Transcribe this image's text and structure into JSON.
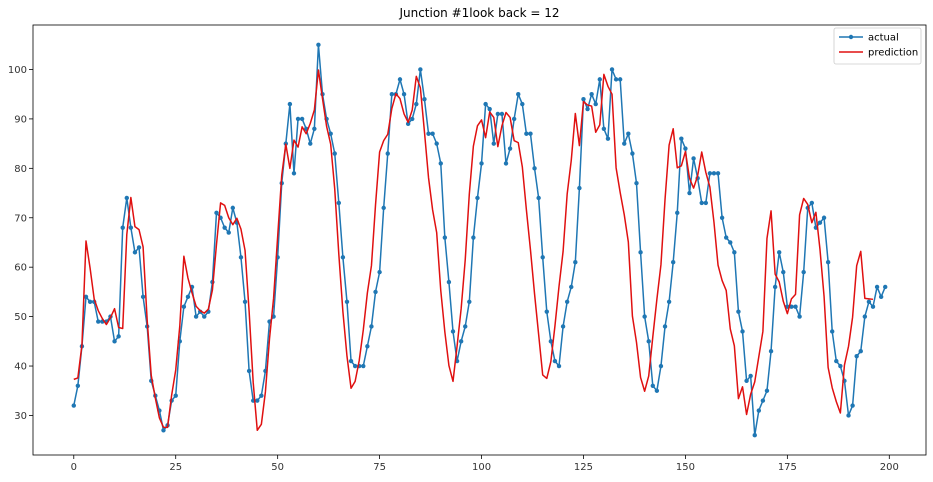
{
  "chart_data": {
    "type": "line",
    "title": "Junction #1look back = 12",
    "xlabel": "",
    "ylabel": "",
    "xlim": [
      -10,
      209
    ],
    "ylim": [
      22,
      109
    ],
    "x_ticks": [
      0,
      25,
      50,
      75,
      100,
      125,
      150,
      175,
      200
    ],
    "y_ticks": [
      30,
      40,
      50,
      60,
      70,
      80,
      90,
      100
    ],
    "grid": false,
    "legend_position": "top-right",
    "series": [
      {
        "name": "actual",
        "color": "#1f77b4",
        "marker": "dot",
        "values": [
          32,
          36,
          44,
          54,
          53,
          53,
          49,
          49,
          49,
          50,
          45,
          46,
          68,
          74,
          68,
          63,
          64,
          54,
          48,
          37,
          34,
          31,
          27,
          28,
          33,
          34,
          45,
          52,
          54,
          56,
          50,
          51,
          50,
          51,
          57,
          71,
          70,
          68,
          67,
          72,
          69,
          62,
          53,
          39,
          33,
          33,
          34,
          39,
          49,
          50,
          62,
          77,
          85,
          93,
          79,
          90,
          90,
          88,
          85,
          88,
          105,
          95,
          90,
          87,
          83,
          73,
          62,
          53,
          41,
          40,
          40,
          40,
          44,
          48,
          55,
          59,
          72,
          83,
          95,
          95,
          98,
          95,
          89,
          90,
          93,
          100,
          94,
          87,
          87,
          85,
          81,
          66,
          57,
          47,
          41,
          45,
          48,
          53,
          66,
          74,
          81,
          93,
          92,
          85,
          91,
          91,
          81,
          84,
          90,
          95,
          93,
          87,
          87,
          80,
          74,
          62,
          51,
          45,
          41,
          40,
          48,
          53,
          56,
          61,
          76,
          94,
          92,
          95,
          93,
          98,
          88,
          86,
          100,
          98,
          98,
          85,
          87,
          83,
          77,
          63,
          50,
          45,
          36,
          35,
          40,
          48,
          53,
          61,
          71,
          86,
          84,
          75,
          82,
          78,
          73,
          73,
          79,
          79,
          79,
          70,
          66,
          65,
          63,
          51,
          47,
          37,
          38,
          26,
          31,
          33,
          35,
          43,
          56,
          63,
          59,
          52,
          52,
          52,
          50,
          59,
          72,
          73,
          68,
          69,
          70,
          61,
          47,
          41,
          40,
          37,
          30,
          32,
          42,
          43,
          50,
          53,
          52,
          56,
          54,
          56
        ]
      },
      {
        "name": "prediction",
        "color": "#e01010",
        "marker": "none",
        "values": [
          37.3,
          37.6,
          44.2,
          65.3,
          59.8,
          53.6,
          51.2,
          49.6,
          48.4,
          49.8,
          51.6,
          47.8,
          47.6,
          66.6,
          74.1,
          68.2,
          67.6,
          64.1,
          49.3,
          38.1,
          33.5,
          29.5,
          27.6,
          27.6,
          34.1,
          39.2,
          48.1,
          62.2,
          57.8,
          54.8,
          52.1,
          51.2,
          50.7,
          51.5,
          55.4,
          64.6,
          73.0,
          72.5,
          70.0,
          68.6,
          69.9,
          67.7,
          63.4,
          51.1,
          36.7,
          27.0,
          28.2,
          34.8,
          45.5,
          53.7,
          66.2,
          78.6,
          84.9,
          80.0,
          85.7,
          84.3,
          88.4,
          87.0,
          89.1,
          91.8,
          99.9,
          94.1,
          88.5,
          84.9,
          75.8,
          62.6,
          51.0,
          42.0,
          35.5,
          36.9,
          41.1,
          47.3,
          54.8,
          60.3,
          72.6,
          83.3,
          85.6,
          86.9,
          92.1,
          95.1,
          94.1,
          91.0,
          89.3,
          91.8,
          98.6,
          96.3,
          87.4,
          78.1,
          71.6,
          67.0,
          55.3,
          46.9,
          40.1,
          36.9,
          44.0,
          51.6,
          61.5,
          74.8,
          84.5,
          88.6,
          89.8,
          86.2,
          91.4,
          90.3,
          84.4,
          88.6,
          91.3,
          90.3,
          85.6,
          85.2,
          80.3,
          71.6,
          63.5,
          54.6,
          46.4,
          38.2,
          37.5,
          40.9,
          48.1,
          56.1,
          63.2,
          74.8,
          81.6,
          91.1,
          84.6,
          93.5,
          92.8,
          92.6,
          87.3,
          88.8,
          99.0,
          96.6,
          95.0,
          80.1,
          75.1,
          70.6,
          65.1,
          50.1,
          44.8,
          37.7,
          34.9,
          38.0,
          45.9,
          53.5,
          60.5,
          73.7,
          84.7,
          88.0,
          80.1,
          80.5,
          83.4,
          78.0,
          76.0,
          78.5,
          83.3,
          79.2,
          76.2,
          69.1,
          60.4,
          57.3,
          55.3,
          47.5,
          44.1,
          33.4,
          35.8,
          30.2,
          34.3,
          36.8,
          41.9,
          47.0,
          65.8,
          71.4,
          58.6,
          57.0,
          53.1,
          50.6,
          53.6,
          54.5,
          70.6,
          73.9,
          72.7,
          69.0,
          71.1,
          63.6,
          54.1,
          39.7,
          35.6,
          32.8,
          30.5,
          40.2,
          44.0,
          49.9,
          60.3,
          63.2,
          53.7,
          53.6,
          53.5
        ]
      }
    ]
  }
}
